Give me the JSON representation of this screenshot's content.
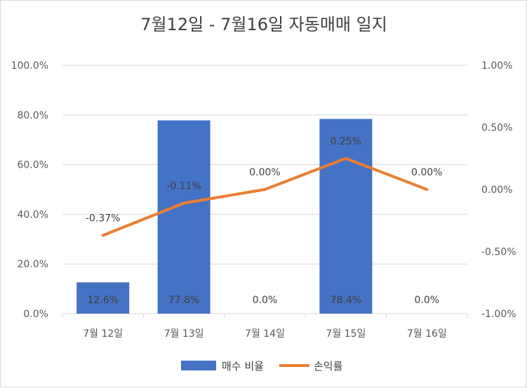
{
  "chart_data": {
    "type": "bar+line",
    "title": "7월12일 - 7월16일 자동매매 일지",
    "categories": [
      "7월 12일",
      "7월 13일",
      "7월 14일",
      "7월 15일",
      "7월 16일"
    ],
    "series": [
      {
        "name": "매수 비율",
        "type": "bar",
        "axis": "left",
        "values": [
          12.6,
          77.8,
          0.0,
          78.4,
          0.0
        ],
        "labels": [
          "12.6%",
          "77.8%",
          "0.0%",
          "78.4%",
          "0.0%"
        ],
        "color": "#4472c4"
      },
      {
        "name": "손익률",
        "type": "line",
        "axis": "right",
        "values": [
          -0.37,
          -0.11,
          0.0,
          0.25,
          0.0
        ],
        "labels": [
          "-0.37%",
          "-0.11%",
          "0.00%",
          "0.25%",
          "0.00%"
        ],
        "color": "#ed7d31"
      }
    ],
    "y_left": {
      "min": 0,
      "max": 100,
      "ticks": [
        "0.0%",
        "20.0%",
        "40.0%",
        "60.0%",
        "80.0%",
        "100.0%"
      ]
    },
    "y_right": {
      "min": -1.0,
      "max": 1.0,
      "ticks": [
        "-1.00%",
        "-0.50%",
        "0.00%",
        "0.50%",
        "1.00%"
      ]
    },
    "grid": true,
    "legend_position": "bottom"
  }
}
